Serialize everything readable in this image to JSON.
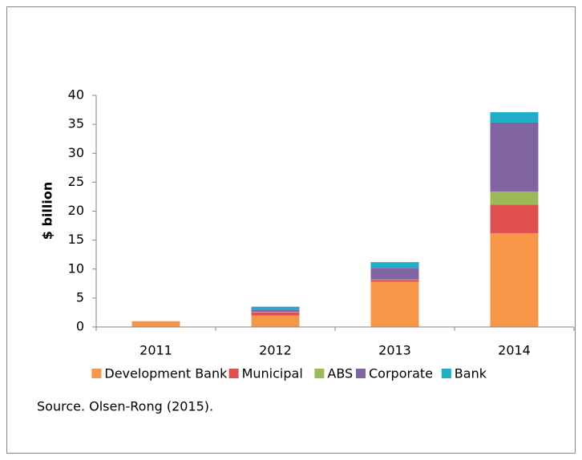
{
  "chart_data": {
    "type": "stacked_bar",
    "y_label": "$ billion",
    "categories": [
      "2011",
      "2012",
      "2013",
      "2014"
    ],
    "series": [
      {
        "name": "Development Bank",
        "color": "#f79646",
        "values": [
          1.0,
          2.0,
          7.8,
          16.2
        ]
      },
      {
        "name": "Municipal",
        "color": "#e05050",
        "values": [
          0,
          0.5,
          0.3,
          4.9
        ]
      },
      {
        "name": "ABS",
        "color": "#9bbb59",
        "values": [
          0,
          0.1,
          0.1,
          2.3
        ]
      },
      {
        "name": "Corporate",
        "color": "#8064a2",
        "values": [
          0,
          0.4,
          2.0,
          11.9
        ]
      },
      {
        "name": "Bank",
        "color": "#1faec6",
        "values": [
          0,
          0.5,
          1.0,
          1.8
        ]
      }
    ],
    "ylim": [
      0,
      40
    ],
    "yticks": [
      0,
      5,
      10,
      15,
      20,
      25,
      30,
      35,
      40
    ],
    "grid": false,
    "legend": "bottom",
    "source": "Source. Olsen-Rong (2015)."
  }
}
